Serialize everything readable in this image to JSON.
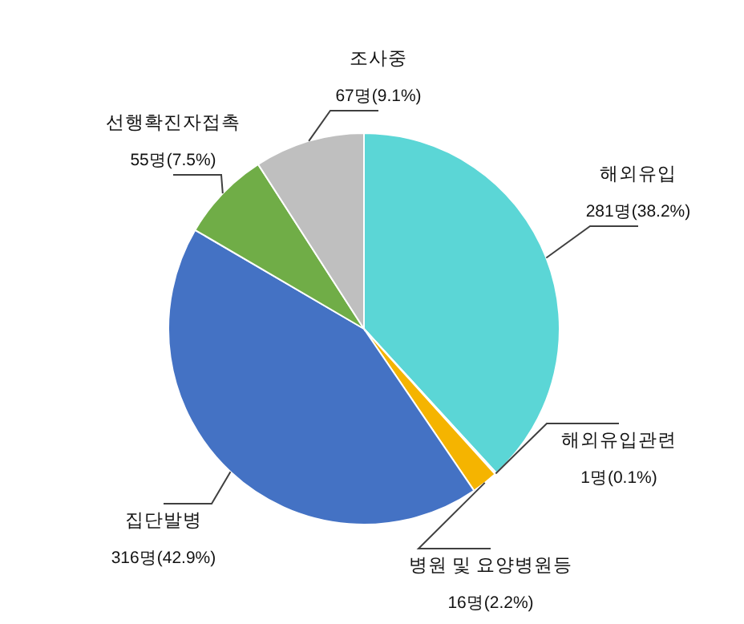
{
  "chart_data": {
    "type": "pie",
    "categories": [
      "해외유입",
      "해외유입관련",
      "병원 및 요양병원등",
      "집단발병",
      "선행확진자접촉",
      "조사중"
    ],
    "values": [
      281,
      1,
      16,
      316,
      55,
      67
    ],
    "value_labels": [
      "281명(38.2%)",
      "1명(0.1%)",
      "16명(2.2%)",
      "316명(42.9%)",
      "55명(7.5%)",
      "67명(9.1%)"
    ],
    "colors": [
      "#5bd6d6",
      "#e06c2a",
      "#f5b400",
      "#4472c4",
      "#70ad47",
      "#bfbfbf"
    ],
    "legend": false
  }
}
